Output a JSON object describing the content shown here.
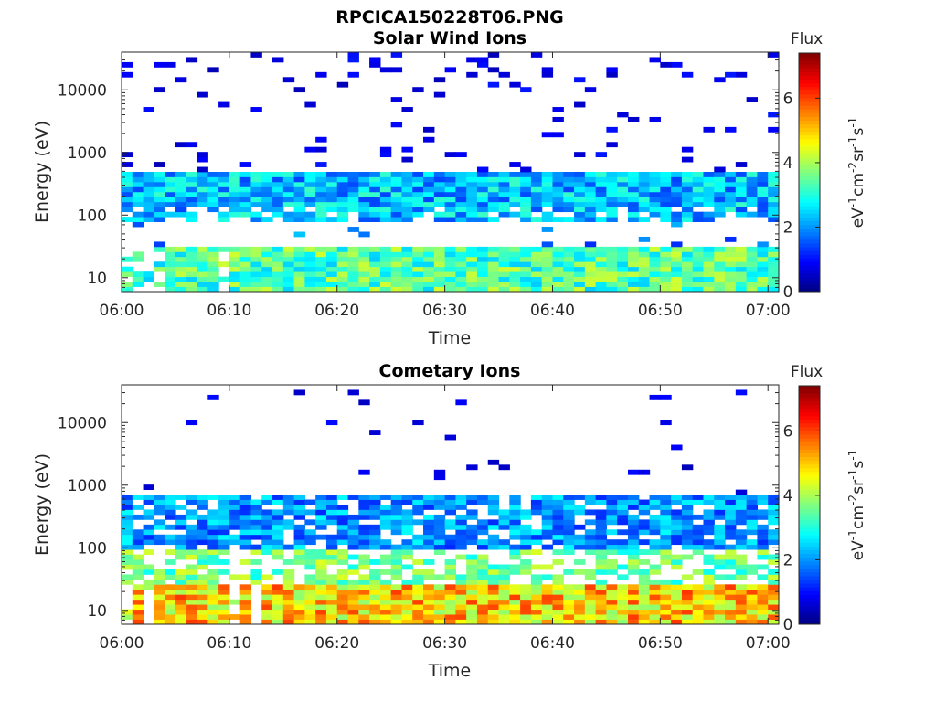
{
  "figure_title": "RPCICA150228T06.PNG",
  "colorbar": {
    "title": "Flux",
    "label_base": "eV",
    "ticks": [
      "0",
      "2",
      "4",
      "6"
    ],
    "tick_values": [
      0,
      2,
      4,
      6
    ],
    "range": [
      0,
      7.4
    ],
    "colormap": "jet"
  },
  "chart_data": [
    {
      "type": "heatmap",
      "title": "Solar Wind Ions",
      "xlabel": "Time",
      "ylabel": "Energy (eV)",
      "x_ticks": [
        "06:00",
        "06:10",
        "06:20",
        "06:30",
        "06:40",
        "06:50",
        "07:00"
      ],
      "x_range": [
        "06:00",
        "07:01"
      ],
      "y_ticks": [
        "10",
        "100",
        "1000",
        "10000"
      ],
      "y_range": [
        6,
        40000
      ],
      "y_scale": "log",
      "profile": "solar",
      "time_columns": 61,
      "seed": 11
    },
    {
      "type": "heatmap",
      "title": "Cometary Ions",
      "xlabel": "Time",
      "ylabel": "Energy (eV)",
      "x_ticks": [
        "06:00",
        "06:10",
        "06:20",
        "06:30",
        "06:40",
        "06:50",
        "07:00"
      ],
      "x_range": [
        "06:00",
        "07:01"
      ],
      "y_ticks": [
        "10",
        "100",
        "1000",
        "10000"
      ],
      "y_range": [
        6,
        40000
      ],
      "y_scale": "log",
      "profile": "cometary",
      "time_columns": 61,
      "seed": 37
    }
  ]
}
